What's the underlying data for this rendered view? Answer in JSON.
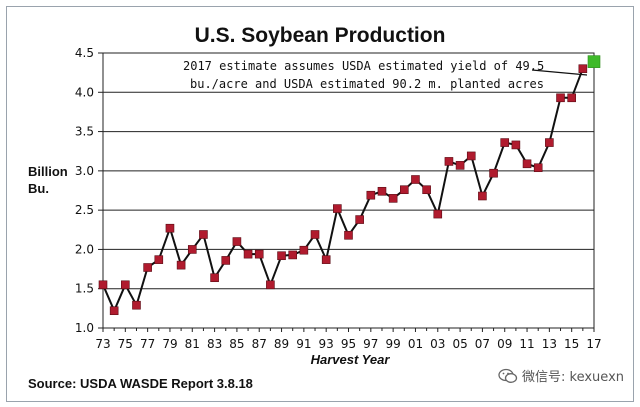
{
  "chart_data": {
    "type": "line",
    "title": "U.S. Soybean Production",
    "ylabel": "Billion Bu.",
    "xlabel": "Harvest Year",
    "ylim": [
      1.0,
      4.5
    ],
    "xlim": [
      1973,
      2017
    ],
    "y_ticks": [
      "1.0",
      "1.5",
      "2.0",
      "2.5",
      "3.0",
      "3.5",
      "4.0",
      "4.5"
    ],
    "x_ticks": [
      "73",
      "75",
      "77",
      "79",
      "81",
      "83",
      "85",
      "87",
      "89",
      "91",
      "93",
      "95",
      "97",
      "99",
      "01",
      "03",
      "05",
      "07",
      "09",
      "11",
      "13",
      "15",
      "17"
    ],
    "grid": "horizontal",
    "series": [
      {
        "color": "#b01b2e",
        "marker_color": "#b01b2e",
        "x": [
          1973,
          1974,
          1975,
          1976,
          1977,
          1978,
          1979,
          1980,
          1981,
          1982,
          1983,
          1984,
          1985,
          1986,
          1987,
          1988,
          1989,
          1990,
          1991,
          1992,
          1993,
          1994,
          1995,
          1996,
          1997,
          1998,
          1999,
          2000,
          2001,
          2002,
          2003,
          2004,
          2005,
          2006,
          2007,
          2008,
          2009,
          2010,
          2011,
          2012,
          2013,
          2014,
          2015,
          2016
        ],
        "values": [
          1.55,
          1.22,
          1.55,
          1.29,
          1.77,
          1.87,
          2.27,
          1.8,
          2.0,
          2.19,
          1.64,
          1.86,
          2.1,
          1.94,
          1.94,
          1.55,
          1.92,
          1.93,
          1.99,
          2.19,
          1.87,
          2.52,
          2.18,
          2.38,
          2.69,
          2.74,
          2.65,
          2.76,
          2.89,
          2.76,
          2.45,
          3.12,
          3.07,
          3.19,
          2.68,
          2.97,
          3.36,
          3.33,
          3.09,
          3.04,
          3.36,
          3.93,
          3.93,
          4.3
        ]
      }
    ],
    "highlight": {
      "x": 2017,
      "value": 4.39,
      "color": "#3fba2a"
    },
    "annotation": {
      "line1": "2017 estimate assumes USDA estimated yield of 49.5",
      "line2": "bu./acre and USDA estimated 90.2 m. planted acres"
    }
  },
  "source": "Source:  USDA WASDE Report 3.8.18",
  "watermark": {
    "icon": "wechat-icon",
    "text": "微信号: kexuexn"
  }
}
